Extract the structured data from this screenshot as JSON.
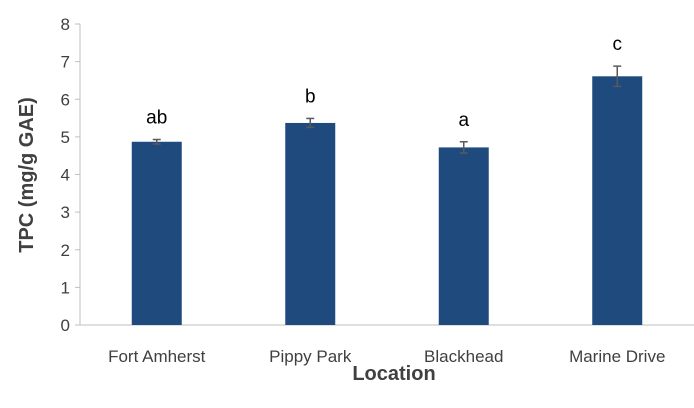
{
  "chart_data": {
    "type": "bar",
    "categories": [
      "Fort Amherst",
      "Pippy Park",
      "Blackhead",
      "Marine Drive"
    ],
    "values": [
      4.87,
      5.37,
      4.72,
      6.61
    ],
    "errors": [
      0.06,
      0.12,
      0.15,
      0.27
    ],
    "significance_labels": [
      "ab",
      "b",
      "a",
      "c"
    ],
    "xlabel": "Location",
    "ylabel": "TPC (mg/g GAE)",
    "ylim": [
      0,
      8
    ],
    "yticks": [
      0,
      1,
      2,
      3,
      4,
      5,
      6,
      7,
      8
    ],
    "grid": false,
    "legend": "none",
    "colors": {
      "bar": "#1f4a7e",
      "error_bar": "#595959",
      "axis": "#bfbfbf"
    }
  }
}
